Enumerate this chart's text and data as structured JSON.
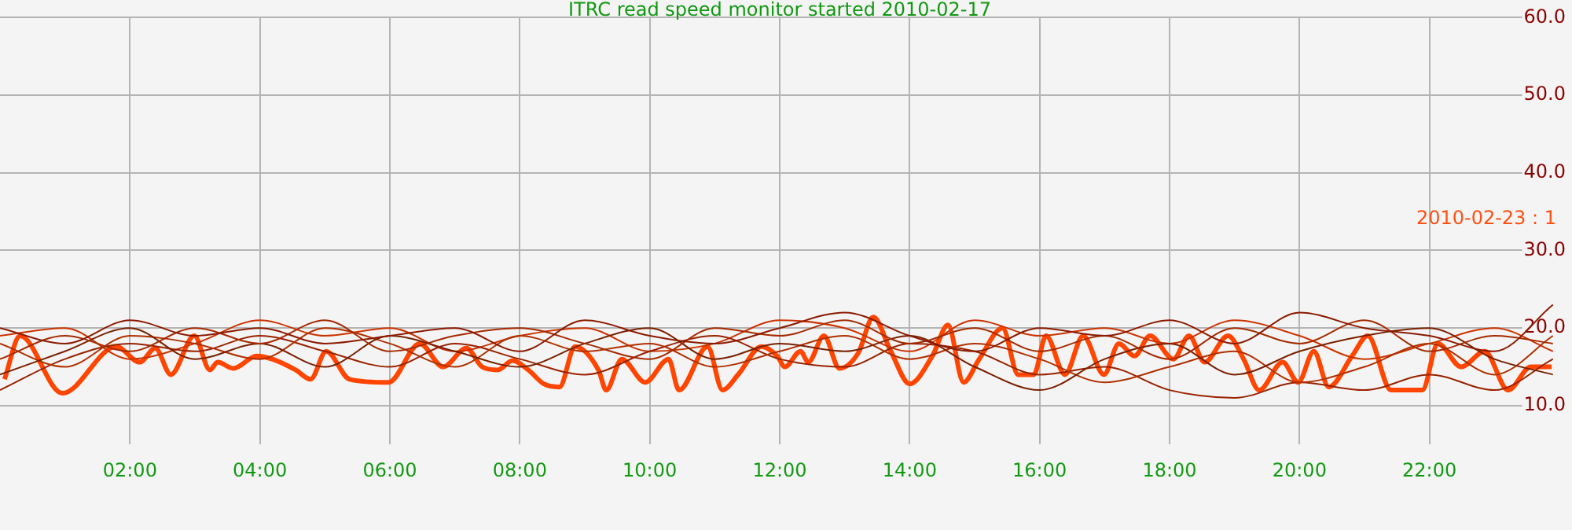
{
  "chart_data": {
    "type": "line",
    "title": "ITRC read speed monitor started 2010-02-17",
    "x": [
      0,
      1,
      2,
      3,
      4,
      5,
      6,
      7,
      8,
      9,
      10,
      11,
      12,
      13,
      14,
      15,
      16,
      17,
      18,
      19,
      20,
      21,
      22,
      23,
      23.9
    ],
    "series": [
      {
        "color": "#8b1a00",
        "values": [
          20,
          18,
          21,
          19,
          20,
          18,
          19,
          20,
          17,
          21,
          19,
          18,
          20,
          22,
          19,
          17,
          20,
          19,
          21,
          18,
          22,
          20,
          19,
          17,
          23
        ]
      },
      {
        "color": "#a52a00",
        "values": [
          16,
          19,
          17,
          20,
          18,
          21,
          17,
          19,
          20,
          18,
          16,
          20,
          19,
          21,
          18,
          20,
          17,
          19,
          16,
          20,
          18,
          21,
          17,
          19,
          18
        ]
      },
      {
        "color": "#7a2000",
        "values": [
          14,
          17,
          20,
          16,
          18,
          15,
          19,
          17,
          15,
          18,
          20,
          16,
          18,
          17,
          19,
          15,
          12,
          16,
          18,
          14,
          17,
          19,
          20,
          16,
          14
        ]
      },
      {
        "color": "#b03000",
        "values": [
          18,
          15,
          19,
          18,
          16,
          20,
          18,
          15,
          19,
          17,
          18,
          15,
          17,
          19,
          16,
          18,
          16,
          13,
          15,
          17,
          13,
          15,
          18,
          14,
          19
        ]
      },
      {
        "color": "#992200",
        "values": [
          12,
          16,
          18,
          17,
          19,
          17,
          15,
          18,
          16,
          14,
          17,
          19,
          16,
          15,
          18,
          17,
          14,
          15,
          12,
          11,
          13,
          12,
          14,
          12,
          16
        ]
      },
      {
        "color": "#cc3300",
        "values": [
          19,
          20,
          16,
          18,
          21,
          19,
          20,
          17,
          19,
          20,
          17,
          18,
          21,
          20,
          17,
          21,
          19,
          20,
          18,
          21,
          19,
          16,
          18,
          20,
          17
        ]
      },
      {
        "color": "#ff4500",
        "x": [
          0.07,
          0.31,
          0.96,
          1.79,
          2.15,
          2.39,
          2.63,
          2.99,
          3.23,
          3.35,
          3.59,
          3.95,
          4.19,
          4.55,
          4.78,
          5.02,
          5.38,
          5.98,
          6.46,
          6.82,
          7.18,
          7.42,
          7.66,
          7.89,
          8.13,
          8.37,
          8.61,
          8.85,
          9.21,
          9.33,
          9.57,
          9.93,
          10.29,
          10.45,
          10.89,
          11.12,
          11.36,
          11.72,
          11.96,
          12.08,
          12.32,
          12.44,
          12.68,
          12.92,
          13.21,
          13.44,
          13.71,
          14.0,
          14.35,
          14.59,
          14.83,
          15.07,
          15.43,
          15.67,
          15.91,
          16.1,
          16.39,
          16.67,
          16.99,
          17.22,
          17.46,
          17.7,
          18.06,
          18.3,
          18.54,
          18.9,
          19.14,
          19.38,
          19.74,
          19.98,
          20.22,
          20.45,
          20.81,
          21.05,
          21.41,
          21.89,
          22.13,
          22.49,
          22.85,
          23.21,
          23.56,
          23.88
        ],
        "values": [
          13.4,
          19,
          11.6,
          17.6,
          15.6,
          17.4,
          14,
          19,
          14.6,
          15.6,
          14.8,
          16.4,
          16,
          14.6,
          13.4,
          17,
          13.4,
          13,
          18,
          15,
          17.4,
          15,
          14.6,
          15.8,
          14.6,
          12.8,
          12.4,
          17.6,
          14.6,
          12,
          16,
          13,
          16,
          12,
          17.6,
          12,
          14,
          17.6,
          16.4,
          15,
          17,
          15.6,
          19,
          14.8,
          16.8,
          21.4,
          17,
          12.8,
          16.4,
          20.4,
          13,
          16,
          20,
          14,
          14,
          19,
          14,
          19,
          14,
          18,
          16.4,
          19,
          16,
          19,
          15.6,
          19,
          16,
          12,
          15.6,
          13,
          17,
          12.4,
          16.4,
          19,
          12,
          12,
          18,
          15,
          17,
          12,
          15,
          15
        ]
      }
    ],
    "annotations": [
      "2010-02-23 : 1"
    ],
    "xlim": [
      0,
      24
    ],
    "xticks": [
      {
        "value": 2,
        "label": "02:00"
      },
      {
        "value": 4,
        "label": "04:00"
      },
      {
        "value": 6,
        "label": "06:00"
      },
      {
        "value": 8,
        "label": "08:00"
      },
      {
        "value": 10,
        "label": "10:00"
      },
      {
        "value": 12,
        "label": "12:00"
      },
      {
        "value": 14,
        "label": "14:00"
      },
      {
        "value": 16,
        "label": "16:00"
      },
      {
        "value": 18,
        "label": "18:00"
      },
      {
        "value": 20,
        "label": "20:00"
      },
      {
        "value": 22,
        "label": "22:00"
      }
    ],
    "ylim": [
      5,
      60
    ],
    "yticks": [
      {
        "value": 10,
        "label": "10.0"
      },
      {
        "value": 20,
        "label": "20.0"
      },
      {
        "value": 30,
        "label": "30.0"
      },
      {
        "value": 40,
        "label": "40.0"
      },
      {
        "value": 50,
        "label": "50.0"
      },
      {
        "value": 60,
        "label": "60.0"
      }
    ],
    "grid": true,
    "legend": false,
    "marker": "none",
    "line_style": "solid"
  }
}
